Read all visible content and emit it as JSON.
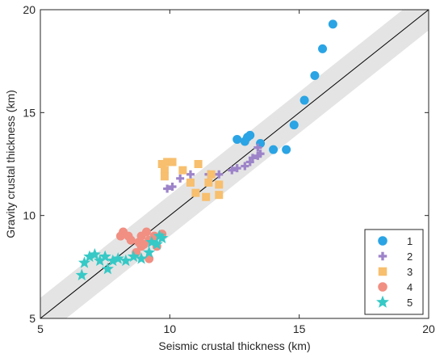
{
  "chart_data": {
    "type": "scatter",
    "title": "",
    "xlabel": "Seismic crustal thickness (km)",
    "ylabel": "Gravity crustal thickness (km)",
    "xlim": [
      5,
      20
    ],
    "ylim": [
      5,
      20
    ],
    "xticks": [
      5,
      10,
      15,
      20
    ],
    "yticks": [
      5,
      10,
      15,
      20
    ],
    "xtick_labels": [
      "5",
      "10",
      "15",
      "20"
    ],
    "ytick_labels": [
      "5",
      "10",
      "15",
      "20"
    ],
    "grid": false,
    "legend_position": "bottom-right",
    "reference_line": {
      "type": "1:1",
      "color": "#000000"
    },
    "uncertainty_band": {
      "half_width": 1,
      "color": "#e4e4e4"
    },
    "series": [
      {
        "name": "1",
        "marker": "circle",
        "color": "#2aa4e4",
        "points": [
          [
            16.3,
            19.3
          ],
          [
            15.9,
            18.1
          ],
          [
            15.6,
            16.8
          ],
          [
            15.2,
            15.6
          ],
          [
            14.8,
            14.4
          ],
          [
            13.1,
            13.9
          ],
          [
            13.0,
            13.8
          ],
          [
            12.6,
            13.7
          ],
          [
            12.9,
            13.6
          ],
          [
            13.5,
            13.5
          ],
          [
            14.0,
            13.2
          ],
          [
            14.5,
            13.2
          ]
        ]
      },
      {
        "name": "2",
        "marker": "plus",
        "color": "#9d84c9",
        "points": [
          [
            9.9,
            11.3
          ],
          [
            10.1,
            11.4
          ],
          [
            10.4,
            11.8
          ],
          [
            10.8,
            12.0
          ],
          [
            11.5,
            12.0
          ],
          [
            11.9,
            12.0
          ],
          [
            12.4,
            12.2
          ],
          [
            12.6,
            12.3
          ],
          [
            12.9,
            12.4
          ],
          [
            13.1,
            12.6
          ],
          [
            13.2,
            12.8
          ],
          [
            13.4,
            12.9
          ],
          [
            13.5,
            13.0
          ],
          [
            13.4,
            13.3
          ]
        ]
      },
      {
        "name": "3",
        "marker": "square",
        "color": "#f7bf6e",
        "points": [
          [
            9.7,
            12.5
          ],
          [
            9.8,
            12.2
          ],
          [
            9.9,
            12.6
          ],
          [
            10.1,
            12.6
          ],
          [
            9.8,
            11.9
          ],
          [
            10.5,
            12.2
          ],
          [
            10.8,
            11.6
          ],
          [
            11.1,
            12.5
          ],
          [
            11.6,
            12.0
          ],
          [
            11.0,
            11.1
          ],
          [
            11.5,
            11.6
          ],
          [
            11.4,
            10.9
          ],
          [
            11.9,
            11.0
          ],
          [
            11.9,
            11.5
          ]
        ]
      },
      {
        "name": "4",
        "marker": "circle",
        "color": "#f18f82",
        "points": [
          [
            8.2,
            9.2
          ],
          [
            8.1,
            9.0
          ],
          [
            8.4,
            9.0
          ],
          [
            8.5,
            8.8
          ],
          [
            8.8,
            8.7
          ],
          [
            8.9,
            8.5
          ],
          [
            8.7,
            8.2
          ],
          [
            8.9,
            9.0
          ],
          [
            9.1,
            9.2
          ],
          [
            9.2,
            8.8
          ],
          [
            9.2,
            7.9
          ],
          [
            9.5,
            8.5
          ],
          [
            9.0,
            8.6
          ],
          [
            9.4,
            9.0
          ],
          [
            9.7,
            9.1
          ]
        ]
      },
      {
        "name": "5",
        "marker": "star",
        "color": "#36c9c6",
        "points": [
          [
            6.6,
            7.1
          ],
          [
            6.7,
            7.7
          ],
          [
            6.9,
            8.0
          ],
          [
            7.1,
            8.1
          ],
          [
            7.3,
            7.8
          ],
          [
            7.5,
            8.0
          ],
          [
            7.6,
            7.4
          ],
          [
            7.8,
            7.8
          ],
          [
            8.0,
            7.9
          ],
          [
            8.3,
            7.8
          ],
          [
            8.6,
            8.0
          ],
          [
            8.9,
            7.9
          ],
          [
            9.2,
            8.2
          ],
          [
            9.3,
            8.7
          ],
          [
            9.6,
            9.0
          ],
          [
            9.7,
            8.9
          ],
          [
            9.5,
            8.6
          ]
        ]
      }
    ]
  }
}
